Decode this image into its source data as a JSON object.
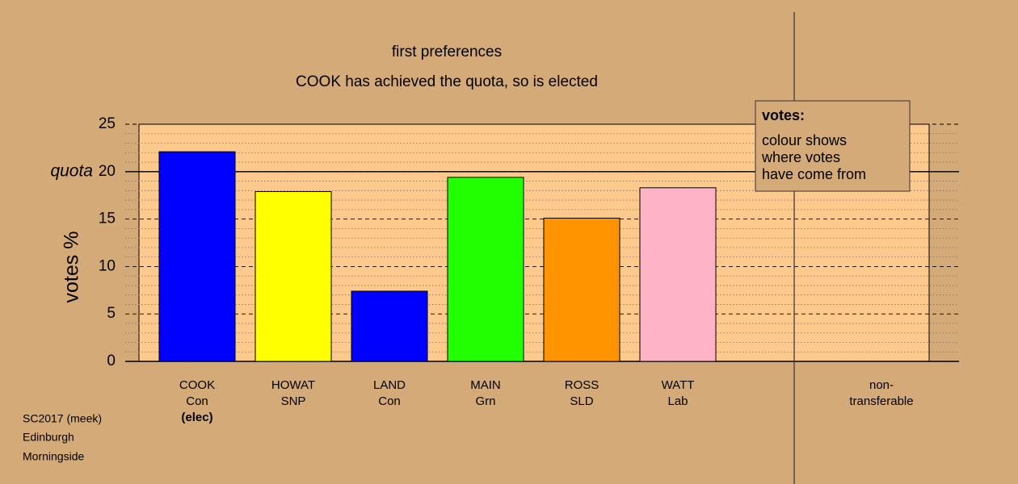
{
  "chart_data": {
    "type": "bar",
    "title": "first preferences",
    "subtitle": "COOK has achieved the quota, so is elected",
    "ylabel": "votes %",
    "categories": [
      [
        "COOK",
        "Con",
        "(elec)"
      ],
      [
        "HOWAT",
        "SNP"
      ],
      [
        "LAND",
        "Con"
      ],
      [
        "MAIN",
        "Grn"
      ],
      [
        "ROSS",
        "SLD"
      ],
      [
        "WATT",
        "Lab"
      ],
      [
        "non-",
        "transferable"
      ]
    ],
    "values": [
      22.1,
      17.9,
      7.4,
      19.4,
      15.1,
      18.3,
      0
    ],
    "colors": [
      "#0000ff",
      "#ffff00",
      "#0000ff",
      "#22ff00",
      "#ff9400",
      "#ffb3c6",
      "#888888"
    ],
    "ylim": [
      0,
      25
    ],
    "yticks": [
      0,
      5,
      10,
      15,
      20,
      25
    ],
    "quota": {
      "value": 20,
      "label": "quota"
    },
    "grid": true,
    "legend": {
      "title": "votes:",
      "lines": [
        "colour shows",
        "where votes",
        "have come from"
      ]
    },
    "footer": [
      "SC2017 (meek)",
      "Edinburgh",
      "Morningside"
    ]
  }
}
